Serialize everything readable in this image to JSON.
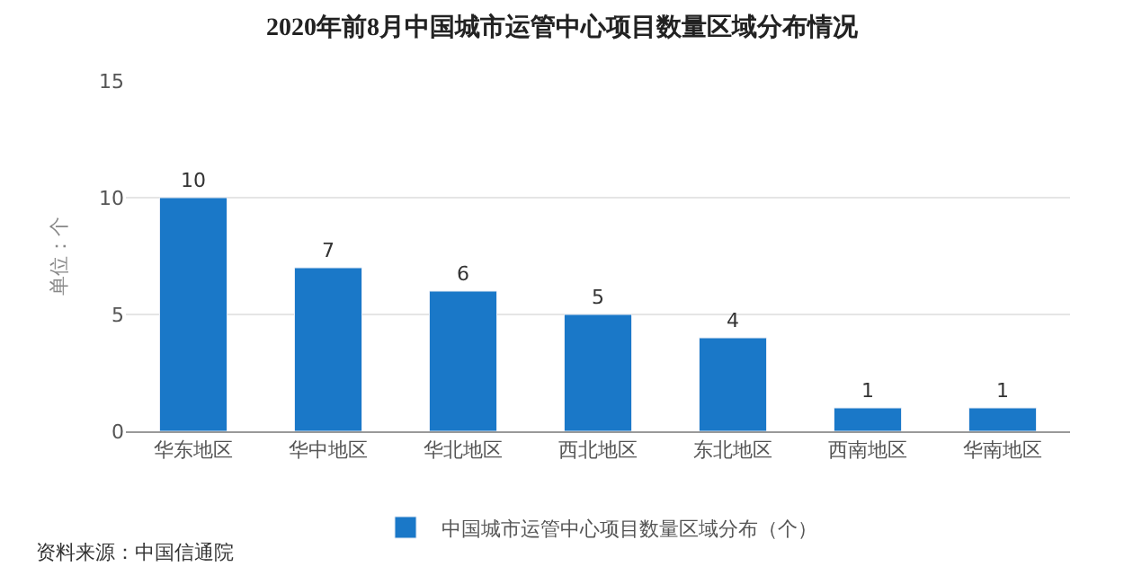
{
  "chart_data": {
    "type": "bar",
    "title": "2020年前8月中国城市运管中心项目数量区域分布情况",
    "ylabel": "单位：个",
    "categories": [
      "华东地区",
      "华中地区",
      "华北地区",
      "西北地区",
      "东北地区",
      "西南地区",
      "华南地区"
    ],
    "series": [
      {
        "name": "中国城市运管中心项目数量区域分布（个）",
        "color": "#1a78c8",
        "values": [
          10,
          7,
          6,
          5,
          4,
          1,
          1
        ]
      }
    ],
    "ylim": [
      0,
      15
    ],
    "yticks": [
      0,
      5,
      10,
      15
    ],
    "grid": "y",
    "legend": "bottom",
    "data_labels": true,
    "annotations": [
      "资料来源：中国信通院"
    ]
  }
}
